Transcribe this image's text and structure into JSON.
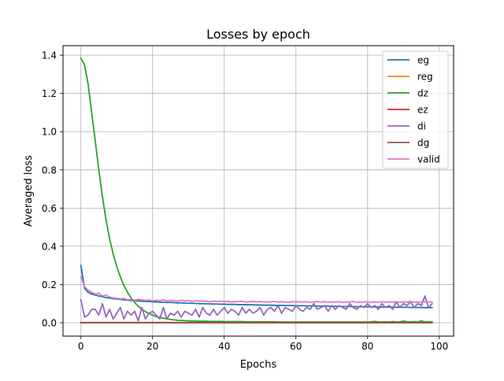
{
  "chart_data": {
    "type": "line",
    "title": "Losses by epoch",
    "xlabel": "Epochs",
    "ylabel": "Averaged loss",
    "xlim": [
      -5,
      104
    ],
    "ylim": [
      -0.07,
      1.45
    ],
    "xticks": [
      0,
      20,
      40,
      60,
      80,
      100
    ],
    "xtick_labels": [
      "0",
      "20",
      "40",
      "60",
      "80",
      "100"
    ],
    "yticks": [
      0.0,
      0.2,
      0.4,
      0.6,
      0.8,
      1.0,
      1.2,
      1.4
    ],
    "ytick_labels": [
      "0.0",
      "0.2",
      "0.4",
      "0.6",
      "0.8",
      "1.0",
      "1.2",
      "1.4"
    ],
    "grid": true,
    "legend_position": "upper right",
    "x": [
      0,
      1,
      2,
      3,
      4,
      5,
      6,
      7,
      8,
      9,
      10,
      11,
      12,
      13,
      14,
      15,
      16,
      17,
      18,
      19,
      20,
      21,
      22,
      23,
      24,
      25,
      26,
      27,
      28,
      29,
      30,
      31,
      32,
      33,
      34,
      35,
      36,
      37,
      38,
      39,
      40,
      41,
      42,
      43,
      44,
      45,
      46,
      47,
      48,
      49,
      50,
      51,
      52,
      53,
      54,
      55,
      56,
      57,
      58,
      59,
      60,
      61,
      62,
      63,
      64,
      65,
      66,
      67,
      68,
      69,
      70,
      71,
      72,
      73,
      74,
      75,
      76,
      77,
      78,
      79,
      80,
      81,
      82,
      83,
      84,
      85,
      86,
      87,
      88,
      89,
      90,
      91,
      92,
      93,
      94,
      95,
      96,
      97,
      98
    ],
    "series": [
      {
        "name": "eg",
        "color": "#1f77b4",
        "values": [
          0.3,
          0.18,
          0.16,
          0.15,
          0.145,
          0.14,
          0.136,
          0.132,
          0.129,
          0.126,
          0.124,
          0.122,
          0.12,
          0.118,
          0.117,
          0.116,
          0.114,
          0.113,
          0.112,
          0.111,
          0.11,
          0.109,
          0.108,
          0.107,
          0.106,
          0.106,
          0.105,
          0.104,
          0.104,
          0.103,
          0.102,
          0.102,
          0.101,
          0.1,
          0.1,
          0.099,
          0.099,
          0.098,
          0.098,
          0.097,
          0.097,
          0.096,
          0.096,
          0.096,
          0.095,
          0.095,
          0.094,
          0.094,
          0.094,
          0.093,
          0.093,
          0.092,
          0.092,
          0.092,
          0.091,
          0.091,
          0.091,
          0.09,
          0.09,
          0.09,
          0.089,
          0.089,
          0.089,
          0.088,
          0.088,
          0.088,
          0.087,
          0.087,
          0.087,
          0.087,
          0.086,
          0.086,
          0.086,
          0.085,
          0.085,
          0.085,
          0.085,
          0.084,
          0.084,
          0.084,
          0.084,
          0.083,
          0.083,
          0.083,
          0.082,
          0.082,
          0.082,
          0.082,
          0.081,
          0.081,
          0.081,
          0.081,
          0.08,
          0.08,
          0.08,
          0.08,
          0.079,
          0.079,
          0.079
        ]
      },
      {
        "name": "reg",
        "color": "#ff7f0e",
        "values": [
          0.001,
          0.001,
          0.001,
          0.001,
          0.001,
          0.001,
          0.001,
          0.001,
          0.001,
          0.001,
          0.001,
          0.001,
          0.001,
          0.001,
          0.001,
          0.001,
          0.001,
          0.001,
          0.001,
          0.001,
          0.001,
          0.001,
          0.001,
          0.001,
          0.001,
          0.001,
          0.001,
          0.001,
          0.001,
          0.001,
          0.001,
          0.001,
          0.001,
          0.001,
          0.001,
          0.001,
          0.001,
          0.001,
          0.001,
          0.001,
          0.001,
          0.001,
          0.001,
          0.001,
          0.001,
          0.001,
          0.001,
          0.001,
          0.001,
          0.001,
          0.001,
          0.001,
          0.001,
          0.001,
          0.001,
          0.001,
          0.001,
          0.001,
          0.001,
          0.001,
          0.001,
          0.001,
          0.001,
          0.001,
          0.001,
          0.001,
          0.001,
          0.001,
          0.001,
          0.001,
          0.001,
          0.001,
          0.001,
          0.001,
          0.001,
          0.001,
          0.001,
          0.001,
          0.001,
          0.001,
          0.001,
          0.001,
          0.001,
          0.001,
          0.001,
          0.001,
          0.001,
          0.001,
          0.001,
          0.001,
          0.001,
          0.001,
          0.001,
          0.001,
          0.001,
          0.001,
          0.001,
          0.001,
          0.001
        ]
      },
      {
        "name": "dz",
        "color": "#2ca02c",
        "values": [
          1.385,
          1.35,
          1.25,
          1.1,
          0.95,
          0.8,
          0.66,
          0.54,
          0.44,
          0.36,
          0.295,
          0.24,
          0.195,
          0.16,
          0.13,
          0.106,
          0.087,
          0.071,
          0.058,
          0.048,
          0.04,
          0.033,
          0.028,
          0.024,
          0.02,
          0.017,
          0.015,
          0.013,
          0.012,
          0.011,
          0.01,
          0.009,
          0.009,
          0.008,
          0.008,
          0.008,
          0.007,
          0.007,
          0.007,
          0.007,
          0.006,
          0.006,
          0.006,
          0.006,
          0.006,
          0.006,
          0.005,
          0.005,
          0.005,
          0.005,
          0.005,
          0.005,
          0.005,
          0.005,
          0.005,
          0.004,
          0.004,
          0.004,
          0.004,
          0.004,
          0.004,
          0.004,
          0.004,
          0.004,
          0.004,
          0.004,
          0.004,
          0.004,
          0.004,
          0.004,
          0.004,
          0.004,
          0.004,
          0.004,
          0.004,
          0.004,
          0.004,
          0.004,
          0.004,
          0.004,
          0.004,
          0.005,
          0.007,
          0.004,
          0.004,
          0.005,
          0.004,
          0.006,
          0.004,
          0.004,
          0.009,
          0.005,
          0.004,
          0.006,
          0.005,
          0.01,
          0.004,
          0.005,
          0.005
        ]
      },
      {
        "name": "ez",
        "color": "#d62728",
        "values": [
          0.0,
          0.0,
          0.0,
          0.0,
          0.0,
          0.0,
          0.0,
          0.0,
          0.0,
          0.0,
          0.0,
          0.0,
          0.0,
          0.0,
          0.0,
          0.0,
          0.0,
          0.0,
          0.0,
          0.0,
          0.0,
          0.0,
          0.0,
          0.0,
          0.0,
          0.0,
          0.0,
          0.0,
          0.0,
          0.0,
          0.0,
          0.0,
          0.0,
          0.0,
          0.0,
          0.0,
          0.0,
          0.0,
          0.0,
          0.0,
          0.0,
          0.0,
          0.0,
          0.0,
          0.0,
          0.0,
          0.0,
          0.0,
          0.0,
          0.0,
          0.0,
          0.0,
          0.0,
          0.0,
          0.0,
          0.0,
          0.0,
          0.0,
          0.0,
          0.0,
          0.0,
          0.0,
          0.0,
          0.0,
          0.0,
          0.0,
          0.0,
          0.0,
          0.0,
          0.0,
          0.0,
          0.0,
          0.0,
          0.0,
          0.0,
          0.0,
          0.0,
          0.0,
          0.0,
          0.0,
          0.0,
          0.0,
          0.0,
          0.0,
          0.0,
          0.0,
          0.0,
          0.0,
          0.0,
          0.0,
          0.0,
          0.0,
          0.0,
          0.0,
          0.0,
          0.0,
          0.0,
          0.0,
          0.0
        ]
      },
      {
        "name": "di",
        "color": "#9467bd",
        "values": [
          0.12,
          0.03,
          0.04,
          0.07,
          0.07,
          0.04,
          0.1,
          0.03,
          0.07,
          0.02,
          0.05,
          0.08,
          0.02,
          0.06,
          0.04,
          0.06,
          0.01,
          0.08,
          0.02,
          0.05,
          0.06,
          0.04,
          0.02,
          0.08,
          0.02,
          0.05,
          0.04,
          0.06,
          0.03,
          0.06,
          0.05,
          0.04,
          0.07,
          0.03,
          0.08,
          0.05,
          0.04,
          0.07,
          0.04,
          0.06,
          0.08,
          0.05,
          0.07,
          0.06,
          0.04,
          0.08,
          0.05,
          0.07,
          0.05,
          0.06,
          0.08,
          0.04,
          0.07,
          0.08,
          0.06,
          0.09,
          0.05,
          0.08,
          0.07,
          0.06,
          0.09,
          0.07,
          0.06,
          0.08,
          0.07,
          0.1,
          0.07,
          0.08,
          0.09,
          0.06,
          0.09,
          0.07,
          0.09,
          0.08,
          0.07,
          0.1,
          0.08,
          0.07,
          0.09,
          0.08,
          0.1,
          0.08,
          0.09,
          0.07,
          0.1,
          0.08,
          0.09,
          0.07,
          0.11,
          0.08,
          0.1,
          0.09,
          0.11,
          0.08,
          0.1,
          0.09,
          0.14,
          0.08,
          0.1
        ]
      },
      {
        "name": "dg",
        "color": "#8c564b",
        "values": [
          0.001,
          0.001,
          0.001,
          0.001,
          0.001,
          0.001,
          0.001,
          0.001,
          0.001,
          0.001,
          0.001,
          0.001,
          0.001,
          0.001,
          0.001,
          0.001,
          0.001,
          0.001,
          0.001,
          0.001,
          0.001,
          0.001,
          0.001,
          0.001,
          0.001,
          0.001,
          0.001,
          0.001,
          0.001,
          0.001,
          0.001,
          0.001,
          0.001,
          0.001,
          0.001,
          0.001,
          0.001,
          0.001,
          0.001,
          0.001,
          0.001,
          0.001,
          0.001,
          0.001,
          0.001,
          0.001,
          0.001,
          0.001,
          0.001,
          0.001,
          0.001,
          0.001,
          0.001,
          0.001,
          0.001,
          0.001,
          0.001,
          0.001,
          0.001,
          0.001,
          0.001,
          0.001,
          0.001,
          0.001,
          0.001,
          0.001,
          0.001,
          0.001,
          0.001,
          0.001,
          0.001,
          0.001,
          0.001,
          0.001,
          0.001,
          0.001,
          0.001,
          0.001,
          0.001,
          0.001,
          0.001,
          0.001,
          0.001,
          0.001,
          0.001,
          0.001,
          0.001,
          0.001,
          0.001,
          0.001,
          0.001,
          0.001,
          0.001,
          0.001,
          0.001,
          0.001,
          0.001,
          0.001,
          0.001
        ]
      },
      {
        "name": "valid",
        "color": "#e377c2",
        "values": [
          0.24,
          0.19,
          0.17,
          0.16,
          0.15,
          0.155,
          0.14,
          0.145,
          0.135,
          0.13,
          0.128,
          0.125,
          0.127,
          0.12,
          0.123,
          0.118,
          0.122,
          0.12,
          0.117,
          0.119,
          0.115,
          0.118,
          0.116,
          0.12,
          0.114,
          0.117,
          0.115,
          0.113,
          0.118,
          0.114,
          0.116,
          0.112,
          0.115,
          0.113,
          0.114,
          0.112,
          0.11,
          0.114,
          0.111,
          0.113,
          0.11,
          0.112,
          0.109,
          0.111,
          0.11,
          0.113,
          0.108,
          0.11,
          0.112,
          0.109,
          0.111,
          0.108,
          0.11,
          0.109,
          0.112,
          0.108,
          0.11,
          0.109,
          0.107,
          0.111,
          0.109,
          0.11,
          0.108,
          0.11,
          0.107,
          0.109,
          0.111,
          0.108,
          0.11,
          0.107,
          0.109,
          0.108,
          0.11,
          0.107,
          0.109,
          0.108,
          0.111,
          0.107,
          0.109,
          0.108,
          0.11,
          0.107,
          0.109,
          0.108,
          0.11,
          0.107,
          0.109,
          0.108,
          0.11,
          0.107,
          0.109,
          0.108,
          0.111,
          0.108,
          0.109,
          0.108,
          0.11,
          0.108,
          0.109
        ]
      }
    ]
  }
}
